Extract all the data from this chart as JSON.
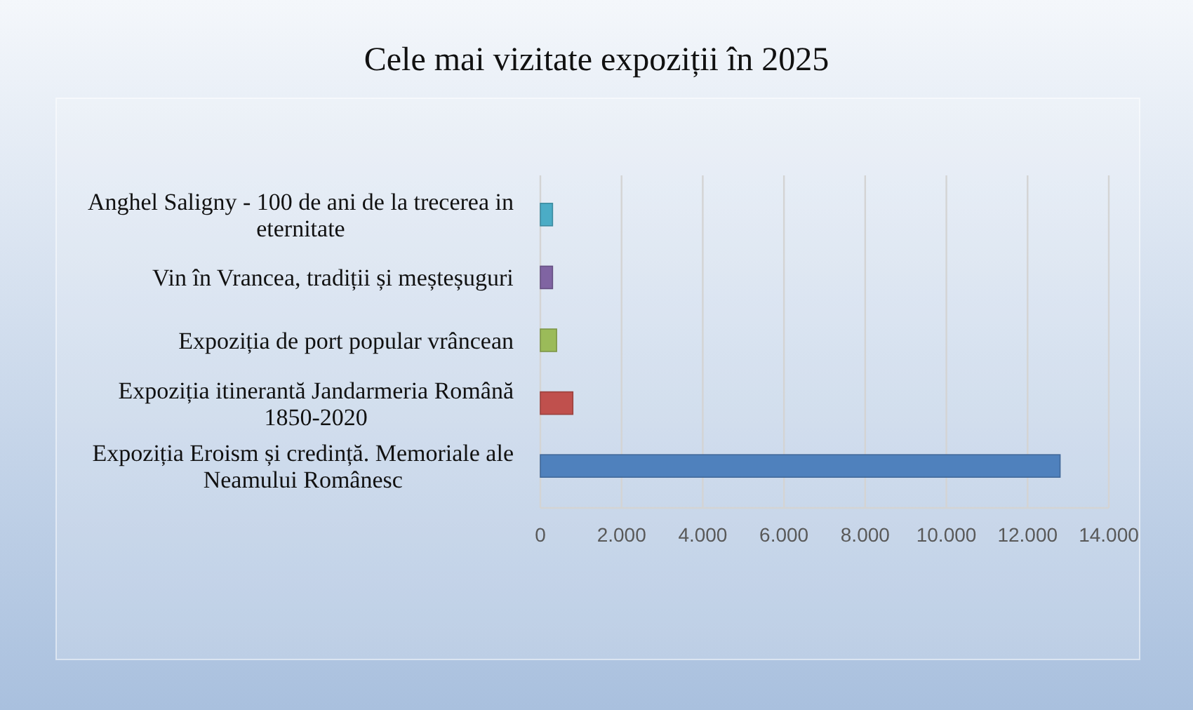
{
  "chart_data": {
    "type": "bar",
    "orientation": "horizontal",
    "title": "Cele mai vizitate expoziții în 2025",
    "categories": [
      "Anghel Saligny - 100 de ani de la trecerea in eternitate",
      "Vin în Vrancea, tradiții și meșteșuguri",
      "Expoziția de port popular vrâncean",
      "Expoziția itinerantă Jandarmeria Română 1850-2020",
      "Expoziția Eroism și credință. Memoriale ale Neamului Românesc"
    ],
    "values": [
      300,
      300,
      400,
      800,
      12800
    ],
    "colors": [
      "#4bacc6",
      "#8064a2",
      "#9bbb59",
      "#c0504d",
      "#4f81bd"
    ],
    "xlim": [
      0,
      14000
    ],
    "xticks": [
      0,
      {
        "value": 2000,
        "label": "2.000"
      },
      {
        "value": 4000,
        "label": "4.000"
      },
      {
        "value": 6000,
        "label": "6.000"
      },
      {
        "value": 8000,
        "label": "8.000"
      },
      {
        "value": 10000,
        "label": "10.000"
      },
      {
        "value": 12000,
        "label": "12.000"
      },
      {
        "value": 14000,
        "label": "14.000"
      }
    ],
    "grid": "x"
  }
}
